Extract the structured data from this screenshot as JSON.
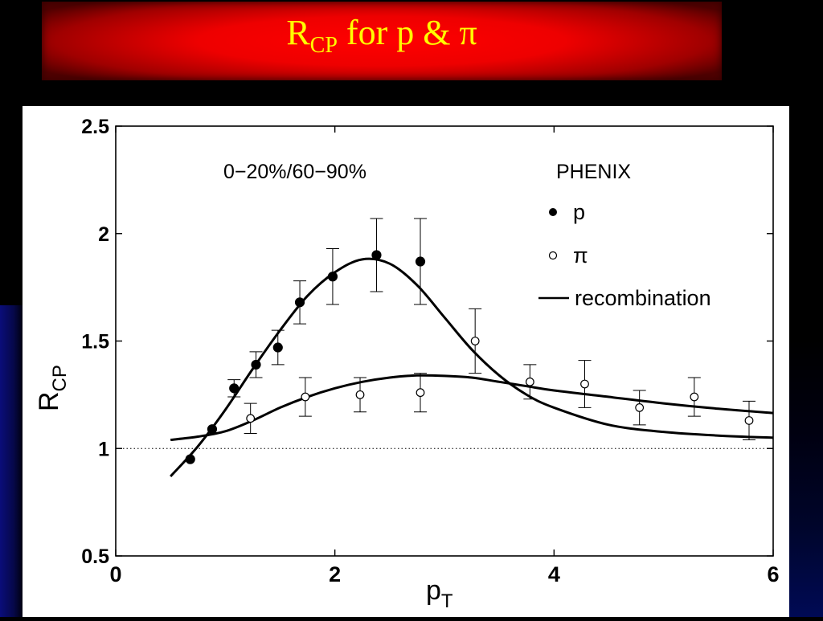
{
  "slide": {
    "title_main": "R",
    "title_sub": "CP",
    "title_rest": " for p & π"
  },
  "colors": {
    "banner_red": "#ff0000",
    "title_yellow": "#ffff00",
    "background": "#000000"
  },
  "chart_data": {
    "type": "scatter",
    "xlabel": "p",
    "xlabel_sub": "T",
    "ylabel": "R",
    "ylabel_sub": "CP",
    "xlim": [
      0,
      6
    ],
    "ylim": [
      0.5,
      2.5
    ],
    "x_ticks": [
      0,
      2,
      4,
      6
    ],
    "y_ticks": [
      0.5,
      1,
      1.5,
      2,
      2.5
    ],
    "x_tick_labels": [
      "0",
      "2",
      "4",
      "6"
    ],
    "y_tick_labels": [
      "0.5",
      "1",
      "1.5",
      "2",
      "2.5"
    ],
    "reference_line": 1,
    "grid": false,
    "legend_position": "top-right",
    "annotations": [
      "0−20%/60−90%",
      "PHENIX"
    ],
    "series": [
      {
        "name": "p",
        "marker": "filled-circle",
        "points": [
          {
            "x": 0.68,
            "y": 0.95,
            "err": 0
          },
          {
            "x": 0.88,
            "y": 1.09,
            "err": 0
          },
          {
            "x": 1.08,
            "y": 1.28,
            "err": 0.04
          },
          {
            "x": 1.28,
            "y": 1.39,
            "err": 0.06
          },
          {
            "x": 1.48,
            "y": 1.47,
            "err": 0.08
          },
          {
            "x": 1.68,
            "y": 1.68,
            "err": 0.1
          },
          {
            "x": 1.98,
            "y": 1.8,
            "err": 0.13
          },
          {
            "x": 2.38,
            "y": 1.9,
            "err": 0.17
          },
          {
            "x": 2.78,
            "y": 1.87,
            "err": 0.2
          }
        ]
      },
      {
        "name": "π",
        "marker": "open-circle",
        "points": [
          {
            "x": 1.23,
            "y": 1.14,
            "err": 0.07
          },
          {
            "x": 1.73,
            "y": 1.24,
            "err": 0.09
          },
          {
            "x": 2.23,
            "y": 1.25,
            "err": 0.08
          },
          {
            "x": 2.78,
            "y": 1.26,
            "err": 0.09
          },
          {
            "x": 3.28,
            "y": 1.5,
            "err": 0.15
          },
          {
            "x": 3.78,
            "y": 1.31,
            "err": 0.08
          },
          {
            "x": 4.28,
            "y": 1.3,
            "err": 0.11
          },
          {
            "x": 4.78,
            "y": 1.19,
            "err": 0.08
          },
          {
            "x": 5.28,
            "y": 1.24,
            "err": 0.09
          },
          {
            "x": 5.78,
            "y": 1.13,
            "err": 0.09
          }
        ]
      }
    ],
    "curves": [
      {
        "name": "recombination",
        "points": [
          {
            "x": 0.5,
            "y": 0.87
          },
          {
            "x": 0.75,
            "y": 1.01
          },
          {
            "x": 1.0,
            "y": 1.18
          },
          {
            "x": 1.25,
            "y": 1.37
          },
          {
            "x": 1.5,
            "y": 1.55
          },
          {
            "x": 1.75,
            "y": 1.71
          },
          {
            "x": 2.0,
            "y": 1.82
          },
          {
            "x": 2.25,
            "y": 1.88
          },
          {
            "x": 2.5,
            "y": 1.86
          },
          {
            "x": 2.75,
            "y": 1.76
          },
          {
            "x": 3.0,
            "y": 1.61
          },
          {
            "x": 3.25,
            "y": 1.46
          },
          {
            "x": 3.5,
            "y": 1.34
          },
          {
            "x": 3.75,
            "y": 1.25
          },
          {
            "x": 4.0,
            "y": 1.19
          },
          {
            "x": 4.5,
            "y": 1.11
          },
          {
            "x": 5.0,
            "y": 1.077
          },
          {
            "x": 5.5,
            "y": 1.06
          },
          {
            "x": 6.0,
            "y": 1.05
          }
        ]
      },
      {
        "name": "recombination",
        "points": [
          {
            "x": 0.5,
            "y": 1.04
          },
          {
            "x": 0.75,
            "y": 1.055
          },
          {
            "x": 1.0,
            "y": 1.08
          },
          {
            "x": 1.25,
            "y": 1.13
          },
          {
            "x": 1.5,
            "y": 1.19
          },
          {
            "x": 1.75,
            "y": 1.24
          },
          {
            "x": 2.0,
            "y": 1.28
          },
          {
            "x": 2.25,
            "y": 1.31
          },
          {
            "x": 2.5,
            "y": 1.33
          },
          {
            "x": 2.75,
            "y": 1.34
          },
          {
            "x": 3.0,
            "y": 1.338
          },
          {
            "x": 3.25,
            "y": 1.33
          },
          {
            "x": 3.5,
            "y": 1.31
          },
          {
            "x": 3.75,
            "y": 1.29
          },
          {
            "x": 4.0,
            "y": 1.27
          },
          {
            "x": 4.5,
            "y": 1.24
          },
          {
            "x": 5.0,
            "y": 1.21
          },
          {
            "x": 5.5,
            "y": 1.185
          },
          {
            "x": 6.0,
            "y": 1.165
          }
        ]
      }
    ]
  }
}
